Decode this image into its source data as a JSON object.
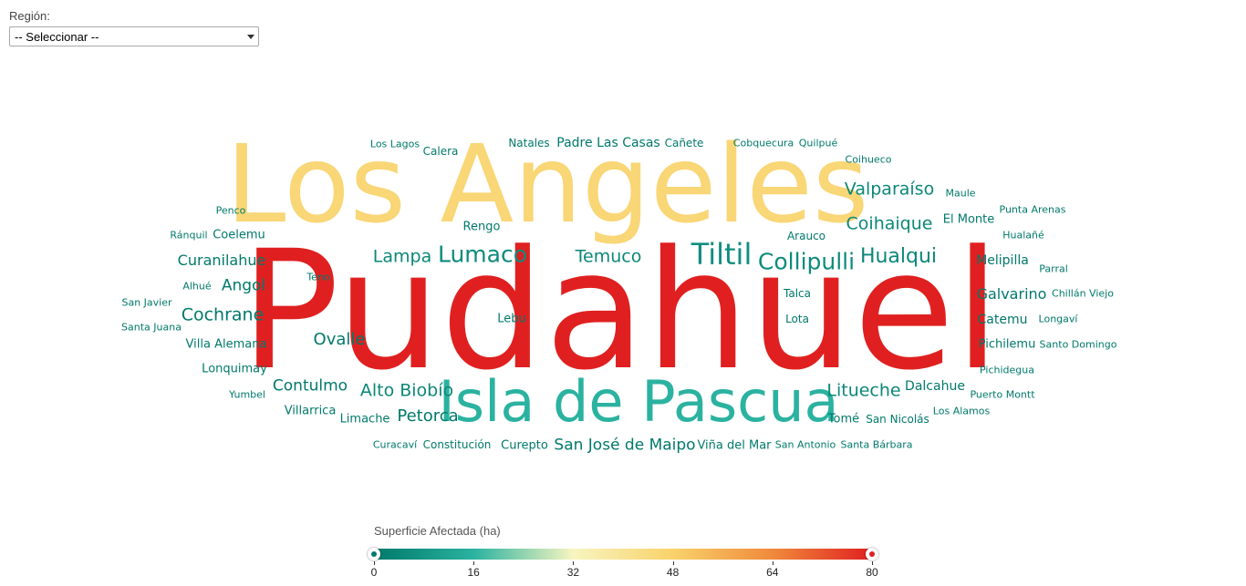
{
  "filter": {
    "label": "Región:",
    "selected": "-- Seleccionar --"
  },
  "legend": {
    "title": "Superficie Afectada (ha)",
    "min": 0,
    "max": 80,
    "ticks": [
      "0",
      "16",
      "32",
      "48",
      "64",
      "80"
    ],
    "colors": [
      "#00796b",
      "#2bb2a0",
      "#f7f5c0",
      "#f9d26b",
      "#f08a3c",
      "#e02020"
    ],
    "handle_low_color": "#00796b",
    "handle_high_color": "#e02020"
  },
  "words": [
    {
      "text": "Pudahuel",
      "value": 80
    },
    {
      "text": "Los Angeles",
      "value": 46
    },
    {
      "text": "Isla de Pascua",
      "value": 16
    },
    {
      "text": "Tiltil",
      "value": 6
    },
    {
      "text": "Lumaco",
      "value": 5
    },
    {
      "text": "Collipulli",
      "value": 5
    },
    {
      "text": "Hualqui",
      "value": 4
    },
    {
      "text": "Temuco",
      "value": 4
    },
    {
      "text": "Lampa",
      "value": 4
    },
    {
      "text": "Valparaíso",
      "value": 4
    },
    {
      "text": "Coihaique",
      "value": 4
    },
    {
      "text": "Litueche",
      "value": 4
    },
    {
      "text": "Alto Biobío",
      "value": 4
    },
    {
      "text": "Petorca",
      "value": 3
    },
    {
      "text": "San José de Maipo",
      "value": 3
    },
    {
      "text": "Cochrane",
      "value": 3
    },
    {
      "text": "Ovalle",
      "value": 3
    },
    {
      "text": "Angol",
      "value": 3
    },
    {
      "text": "Contulmo",
      "value": 3
    },
    {
      "text": "Curanilahue",
      "value": 3
    },
    {
      "text": "Galvarino",
      "value": 3
    },
    {
      "text": "Padre Las Casas",
      "value": 2
    },
    {
      "text": "Villa Alemana",
      "value": 2
    },
    {
      "text": "Catemu",
      "value": 2
    },
    {
      "text": "Melipilla",
      "value": 2
    },
    {
      "text": "Dalcahue",
      "value": 2
    },
    {
      "text": "El Monte",
      "value": 2
    },
    {
      "text": "Pichilemu",
      "value": 2
    },
    {
      "text": "Lonquimay",
      "value": 2
    },
    {
      "text": "Limache",
      "value": 2
    },
    {
      "text": "Rengo",
      "value": 2
    },
    {
      "text": "Lebu",
      "value": 2
    },
    {
      "text": "Curepto",
      "value": 2
    },
    {
      "text": "Viña del Mar",
      "value": 2
    },
    {
      "text": "Tomé",
      "value": 2
    },
    {
      "text": "Coelemu",
      "value": 2
    },
    {
      "text": "Villarrica",
      "value": 2
    },
    {
      "text": "Constitución",
      "value": 2
    },
    {
      "text": "Calera",
      "value": 2
    },
    {
      "text": "Arauco",
      "value": 2
    },
    {
      "text": "Talca",
      "value": 2
    },
    {
      "text": "Lota",
      "value": 2
    },
    {
      "text": "San Nicolás",
      "value": 2
    },
    {
      "text": "Natales",
      "value": 1
    },
    {
      "text": "Cañete",
      "value": 1
    },
    {
      "text": "Cobquecura",
      "value": 1
    },
    {
      "text": "Quilpué",
      "value": 1
    },
    {
      "text": "Coihueco",
      "value": 1
    },
    {
      "text": "Maule",
      "value": 1
    },
    {
      "text": "Los Lagos",
      "value": 1
    },
    {
      "text": "Penco",
      "value": 1
    },
    {
      "text": "Ránquil",
      "value": 1
    },
    {
      "text": "Punta Arenas",
      "value": 1
    },
    {
      "text": "Hualañé",
      "value": 1
    },
    {
      "text": "Parral",
      "value": 1
    },
    {
      "text": "Teno",
      "value": 1
    },
    {
      "text": "Alhué",
      "value": 1
    },
    {
      "text": "San Javier",
      "value": 1
    },
    {
      "text": "Chillán Viejo",
      "value": 1
    },
    {
      "text": "Santa Juana",
      "value": 1
    },
    {
      "text": "Longaví",
      "value": 1
    },
    {
      "text": "Santo Domingo",
      "value": 1
    },
    {
      "text": "Pichidegua",
      "value": 1
    },
    {
      "text": "Yumbel",
      "value": 1
    },
    {
      "text": "Puerto Montt",
      "value": 1
    },
    {
      "text": "Los Alamos",
      "value": 1
    },
    {
      "text": "Curacaví",
      "value": 1
    },
    {
      "text": "San Antonio",
      "value": 1
    },
    {
      "text": "Santa Bárbara",
      "value": 1
    }
  ]
}
